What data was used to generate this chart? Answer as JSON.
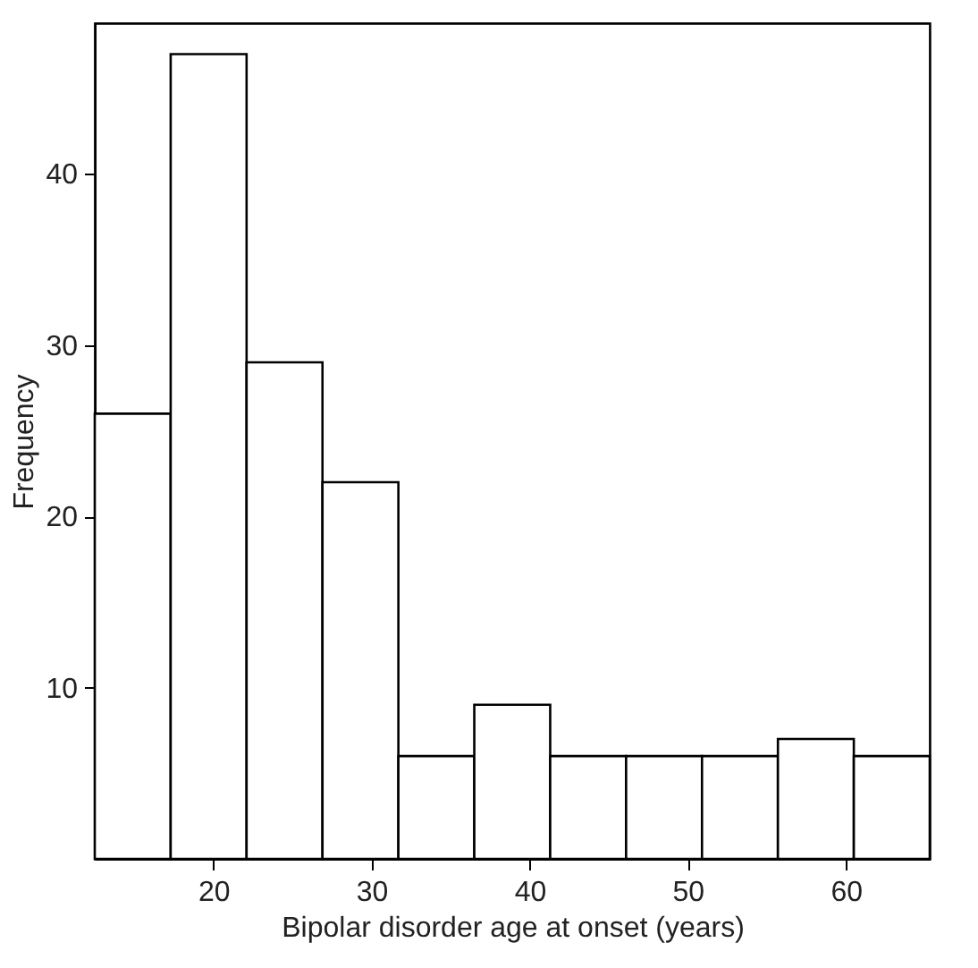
{
  "chart_data": {
    "type": "histogram",
    "xlabel": "Bipolar disorder age at onset (years)",
    "ylabel": "Frequency",
    "bins": [
      12.5,
      17.3,
      22.1,
      26.9,
      31.7,
      36.5,
      41.3,
      46.1,
      50.9,
      55.7,
      60.5,
      65.3
    ],
    "values": [
      26,
      47,
      29,
      22,
      6,
      9,
      6,
      6,
      6,
      7,
      6
    ],
    "color": "#ffffff",
    "xlim": [
      12.5,
      65.3
    ],
    "xticks": [
      20,
      30,
      40,
      50,
      60
    ],
    "ylim": [
      0,
      48.8
    ],
    "yticks": [
      10,
      20,
      30,
      40
    ],
    "grid": false
  }
}
